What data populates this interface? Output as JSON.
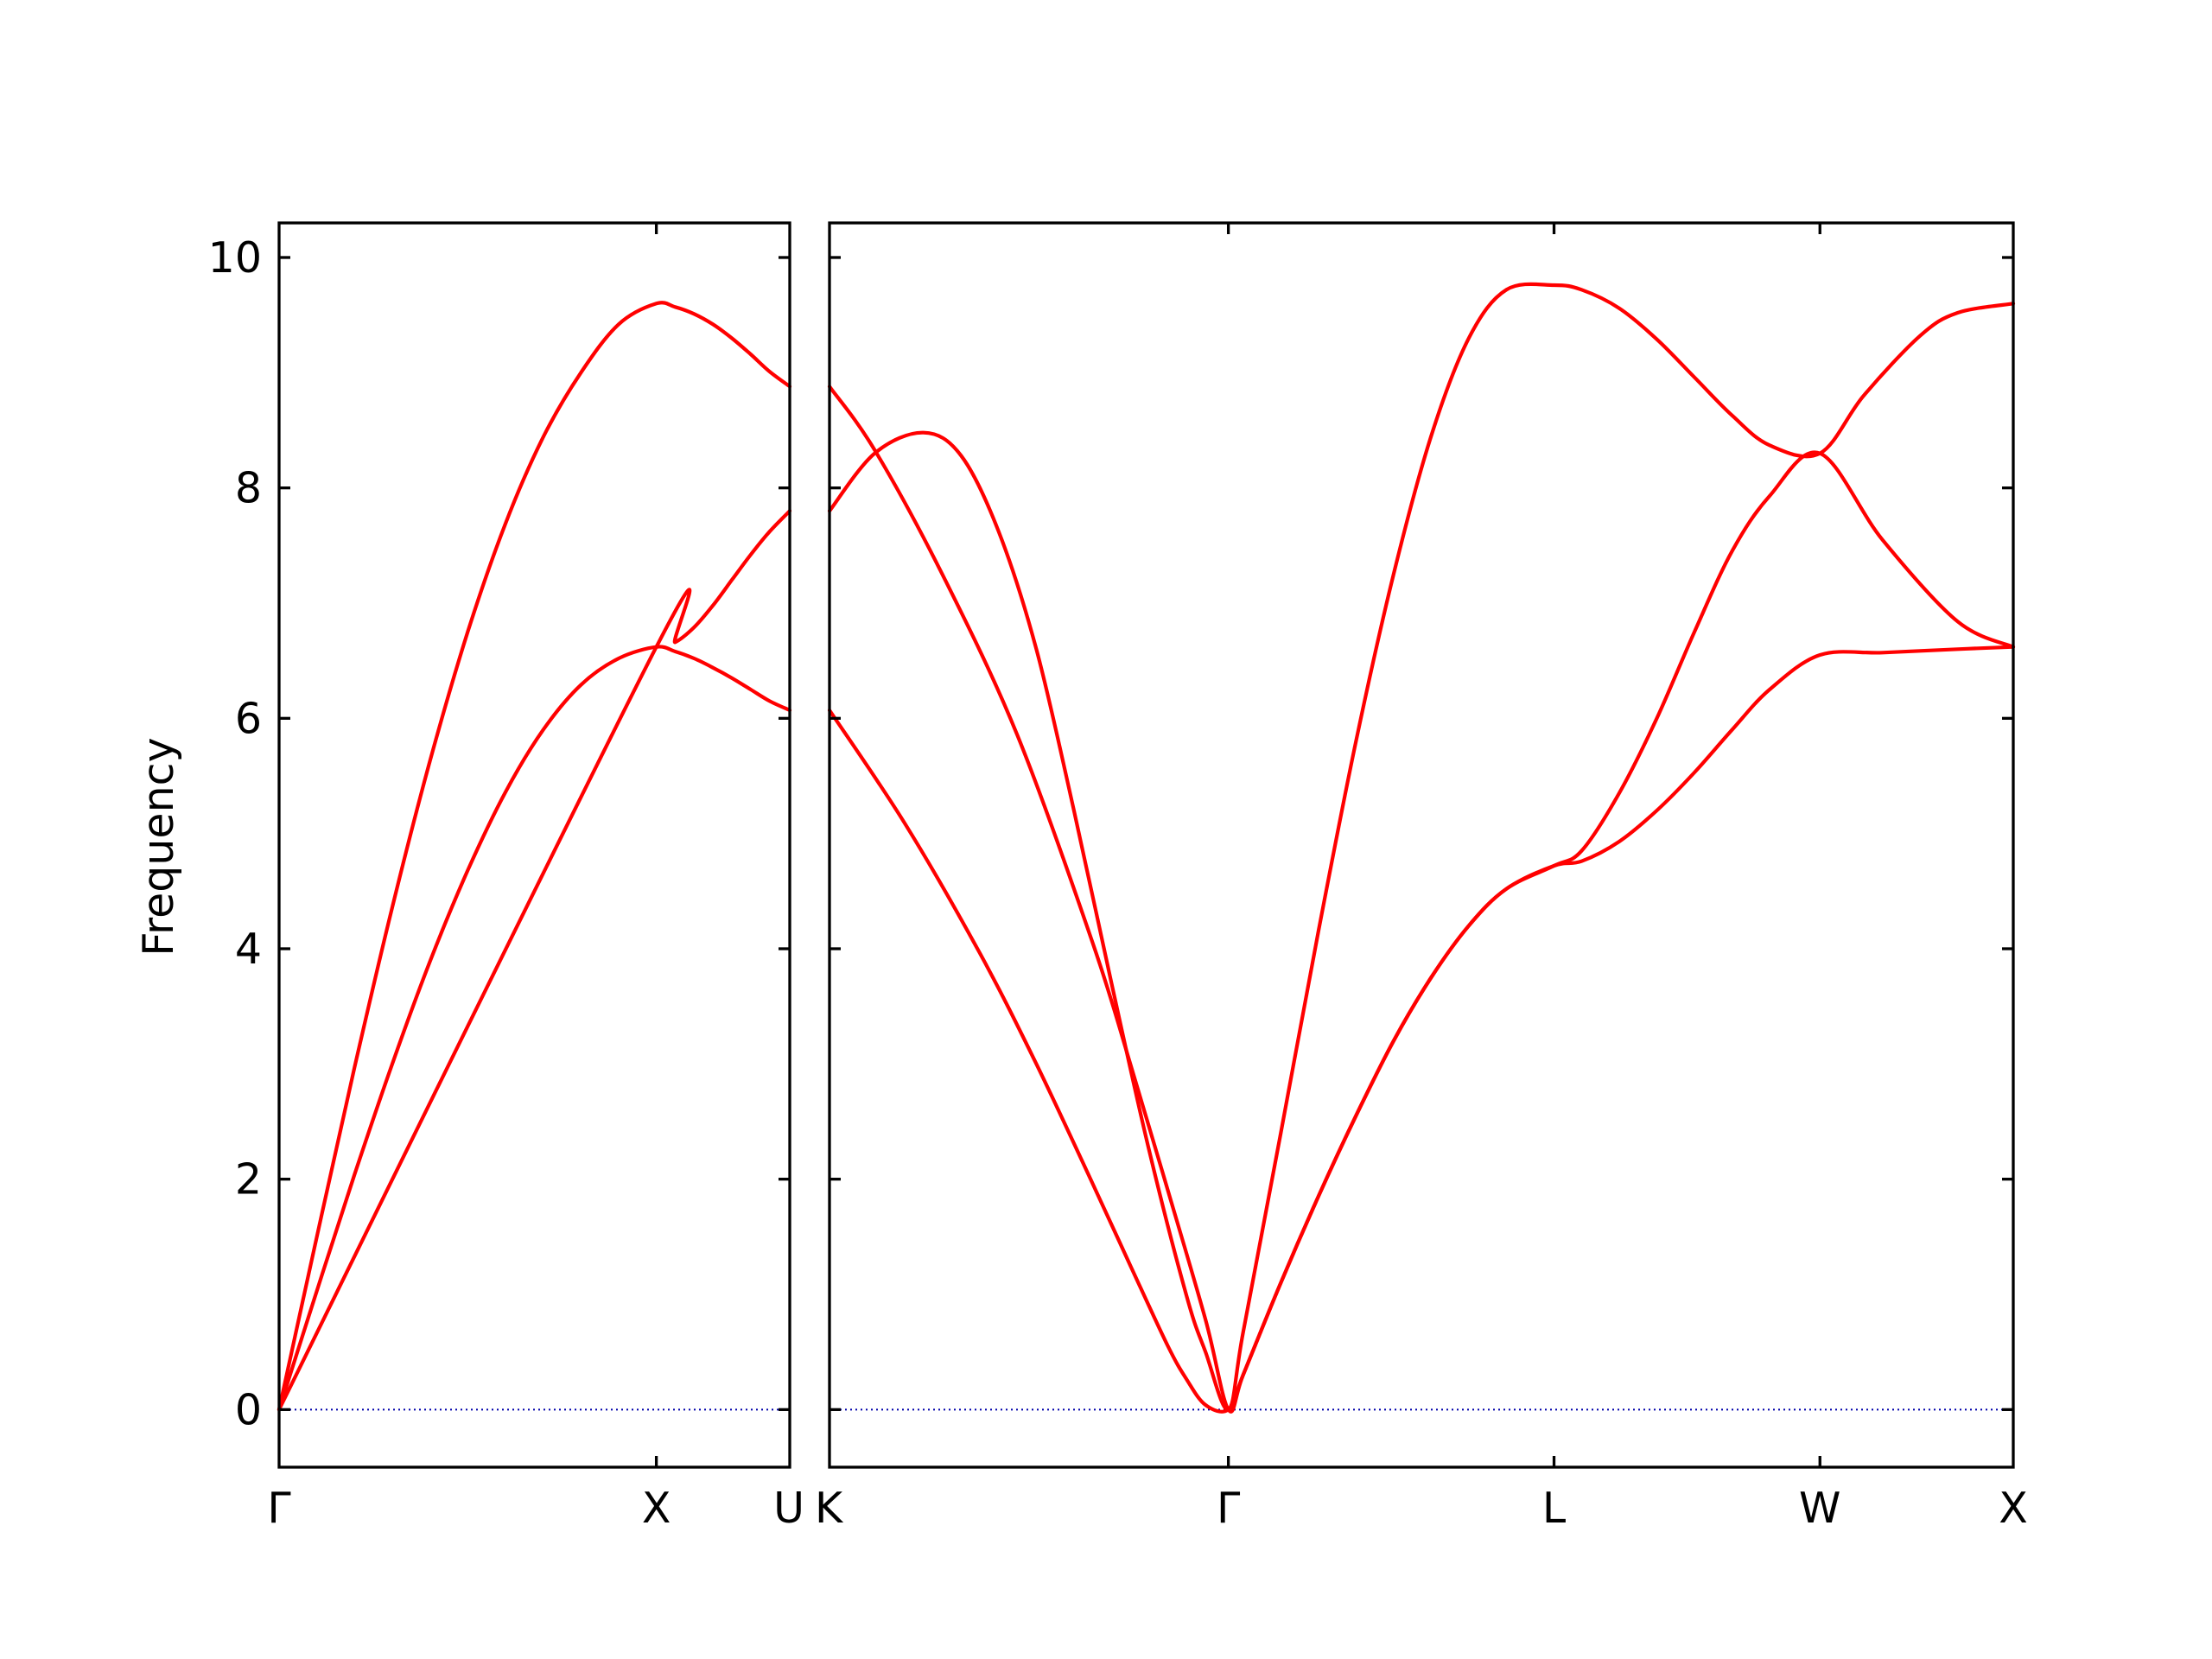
{
  "chart_data": {
    "type": "line",
    "title": "",
    "ylabel": "Frequency",
    "ylim": [
      -0.5,
      10.3
    ],
    "yticks": [
      0,
      2,
      4,
      6,
      8,
      10
    ],
    "colors": {
      "bands": "#ff0000",
      "zero_line": "#0000aa"
    },
    "panels": [
      {
        "xlim": [
          0,
          1.3536
        ],
        "labels": [
          {
            "x": 0,
            "text": "Γ"
          },
          {
            "x": 1.0,
            "text": "X"
          },
          {
            "x": 1.3536,
            "text": "U"
          }
        ],
        "bands": [
          {
            "x": [
              0,
              0.1,
              0.2,
              0.3,
              0.4,
              0.5,
              0.6,
              0.7,
              0.8,
              0.9,
              1.0,
              1.05,
              1.1,
              1.15,
              1.2,
              1.25,
              1.3,
              1.3536
            ],
            "y": [
              0,
              1.03,
              2.04,
              3.0,
              3.89,
              4.68,
              5.36,
              5.9,
              6.29,
              6.52,
              6.62,
              6.58,
              6.52,
              6.44,
              6.35,
              6.25,
              6.15,
              6.07
            ]
          },
          {
            "x": [
              0,
              1.0,
              1.05,
              1.1,
              1.15,
              1.2,
              1.25,
              1.3,
              1.3536
            ],
            "y": [
              0,
              6.62,
              6.66,
              6.79,
              6.98,
              7.2,
              7.42,
              7.62,
              7.8
            ]
          },
          {
            "x": [
              0,
              0.1,
              0.2,
              0.3,
              0.4,
              0.5,
              0.6,
              0.7,
              0.8,
              0.9,
              1.0,
              1.05,
              1.1,
              1.15,
              1.2,
              1.25,
              1.3,
              1.3536
            ],
            "y": [
              0,
              1.5,
              2.97,
              4.36,
              5.63,
              6.75,
              7.69,
              8.44,
              9.0,
              9.42,
              9.6,
              9.57,
              9.51,
              9.42,
              9.3,
              9.16,
              9.01,
              8.88
            ]
          }
        ]
      },
      {
        "xlim": [
          0,
          3.1479
        ],
        "labels": [
          {
            "x": 0,
            "text": "K"
          },
          {
            "x": 1.0607,
            "text": "Γ"
          },
          {
            "x": 1.9267,
            "text": "L"
          },
          {
            "x": 2.6338,
            "text": "W"
          },
          {
            "x": 3.1479,
            "text": "X"
          }
        ],
        "bands": [
          {
            "x": [
              0,
              0.2,
              0.4,
              0.55,
              0.7,
              0.8,
              0.9,
              0.95,
              1.0,
              1.0607,
              1.1,
              1.2,
              1.3,
              1.4,
              1.5,
              1.6,
              1.7,
              1.8,
              1.9267,
              2.0,
              2.1,
              2.2,
              2.3,
              2.4,
              2.5,
              2.6338,
              2.8,
              3.0,
              3.1479
            ],
            "y": [
              6.07,
              5.09,
              3.96,
              3.0,
              1.96,
              1.25,
              0.55,
              0.26,
              0.04,
              0.0,
              0.3,
              1.1,
              1.85,
              2.55,
              3.2,
              3.75,
              4.2,
              4.52,
              4.72,
              4.76,
              4.93,
              5.2,
              5.53,
              5.9,
              6.25,
              6.55,
              6.57,
              6.6,
              6.62
            ]
          },
          {
            "x": [
              0,
              0.12,
              0.3,
              0.5,
              0.7,
              0.8,
              0.9,
              1.0,
              1.0607,
              1.1,
              1.2,
              1.3,
              1.4,
              1.5,
              1.6,
              1.7,
              1.8,
              1.9267,
              2.0,
              2.1,
              2.2,
              2.3,
              2.4,
              2.5,
              2.6338,
              2.8,
              3.0,
              3.1479
            ],
            "y": [
              8.88,
              8.33,
              7.25,
              5.85,
              4.05,
              3.0,
              1.9,
              0.78,
              0.0,
              0.3,
              1.1,
              1.85,
              2.55,
              3.2,
              3.75,
              4.2,
              4.52,
              4.72,
              4.85,
              5.35,
              6.0,
              6.75,
              7.45,
              7.93,
              8.3,
              7.55,
              6.84,
              6.62
            ]
          },
          {
            "x": [
              0,
              0.12,
              0.25,
              0.35,
              0.45,
              0.55,
              0.65,
              0.75,
              0.85,
              0.95,
              1.0,
              1.0607,
              1.1,
              1.2,
              1.3,
              1.4,
              1.5,
              1.6,
              1.7,
              1.8,
              1.9267,
              2.0,
              2.1,
              2.2,
              2.3,
              2.4,
              2.5,
              2.6338,
              2.75,
              2.9,
              3.0,
              3.1479
            ],
            "y": [
              7.8,
              8.3,
              8.48,
              8.28,
              7.62,
              6.6,
              5.2,
              3.7,
              2.25,
              0.98,
              0.5,
              0.0,
              0.67,
              2.4,
              4.15,
              5.8,
              7.25,
              8.45,
              9.3,
              9.72,
              9.76,
              9.72,
              9.56,
              9.29,
              8.96,
              8.63,
              8.37,
              8.3,
              8.8,
              9.32,
              9.52,
              9.6
            ]
          }
        ]
      }
    ]
  }
}
